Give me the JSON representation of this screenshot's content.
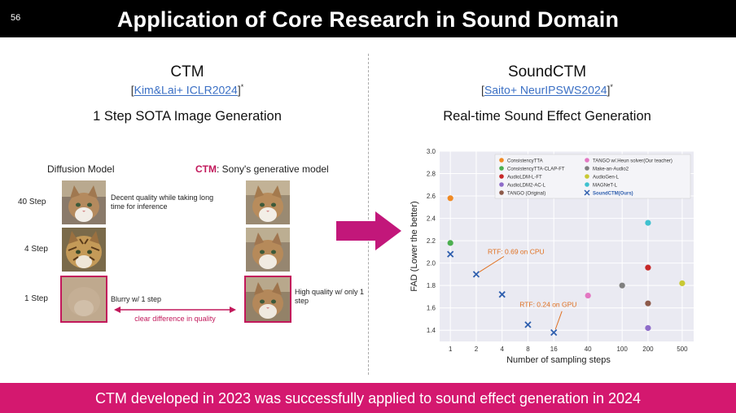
{
  "header": {
    "slide_number": "56",
    "title": "Application of Core Research in Sound Domain"
  },
  "left": {
    "title": "CTM",
    "ref_open": "[",
    "ref_link": "Kim&Lai+ ICLR2024",
    "ref_close": "]",
    "ref_star": "*",
    "subtitle": "1 Step SOTA Image Generation",
    "diffusion_header": "Diffusion Model",
    "ctm_header_bold": "CTM",
    "ctm_header_rest": ": Sony's generative model",
    "steps": [
      "40 Step",
      "4 Step",
      "1 Step"
    ],
    "note_40": "Decent quality while taking long time for inference",
    "note_1_diff": "Blurry w/ 1 step",
    "note_1_ctm": "High quality w/ only 1 step",
    "arrow_label": "clear difference in quality"
  },
  "right": {
    "title": "SoundCTM",
    "ref_open": "[",
    "ref_link": "Saito+ NeurIPSWS2024",
    "ref_close": "]",
    "ref_star": "*"
  },
  "chart_data": {
    "type": "scatter",
    "title": "Real-time Sound Effect Generation",
    "xlabel": "Number of sampling steps",
    "ylabel": "FAD (Lower the better)",
    "x_ticks": [
      "1",
      "2",
      "4",
      "8",
      "16",
      "40",
      "100",
      "200",
      "500"
    ],
    "y_ticks": [
      "1.4",
      "1.6",
      "1.8",
      "2.0",
      "2.2",
      "2.4",
      "2.6",
      "2.8",
      "3.0"
    ],
    "ylim": [
      1.3,
      3.0
    ],
    "x_scale": "log",
    "grid": true,
    "legend_placement": "top",
    "series": [
      {
        "name": "ConsistencyTTA",
        "color": "#f08a24",
        "marker": "circle",
        "points": [
          [
            1,
            2.58
          ]
        ]
      },
      {
        "name": "ConsistencyTTA-CLAP-FT",
        "color": "#4caf50",
        "marker": "circle",
        "points": [
          [
            1,
            2.18
          ]
        ]
      },
      {
        "name": "AudioLDM-L-FT",
        "color": "#c62828",
        "marker": "circle",
        "points": [
          [
            200,
            1.96
          ]
        ]
      },
      {
        "name": "AudioLDM2-AC-L",
        "color": "#8e6cc9",
        "marker": "circle",
        "points": [
          [
            200,
            1.42
          ]
        ]
      },
      {
        "name": "TANGO (Original)",
        "color": "#8d5a4a",
        "marker": "circle",
        "points": [
          [
            200,
            1.64
          ]
        ]
      },
      {
        "name": "TANGO w/.Heun solver(Our teacher)",
        "color": "#e377c2",
        "marker": "circle",
        "points": [
          [
            40,
            1.71
          ]
        ]
      },
      {
        "name": "Make-an-Audio2",
        "color": "#7f7f7f",
        "marker": "circle",
        "points": [
          [
            100,
            1.8
          ]
        ]
      },
      {
        "name": "AudioGen-L",
        "color": "#c9c934",
        "marker": "circle",
        "points": [
          [
            500,
            1.82
          ]
        ]
      },
      {
        "name": "MAGNeT-L",
        "color": "#3fc1cf",
        "marker": "circle",
        "points": [
          [
            200,
            2.36
          ]
        ]
      },
      {
        "name": "SoundCTM(Ours)",
        "color": "#2f5fae",
        "marker": "x",
        "points": [
          [
            1,
            2.08
          ],
          [
            2,
            1.9
          ],
          [
            4,
            1.72
          ],
          [
            8,
            1.45
          ],
          [
            16,
            1.38
          ]
        ]
      }
    ],
    "annotations": [
      {
        "text": "RTF: 0.69 on CPU",
        "x": 2,
        "y": 1.9
      },
      {
        "text": "RTF: 0.24 on GPU",
        "x": 16,
        "y": 1.38
      }
    ]
  },
  "colors": {
    "accent": "#d4186f",
    "header_bg": "#000000"
  },
  "footer": {
    "text": "CTM developed in 2023 was successfully applied to sound effect generation in 2024"
  }
}
